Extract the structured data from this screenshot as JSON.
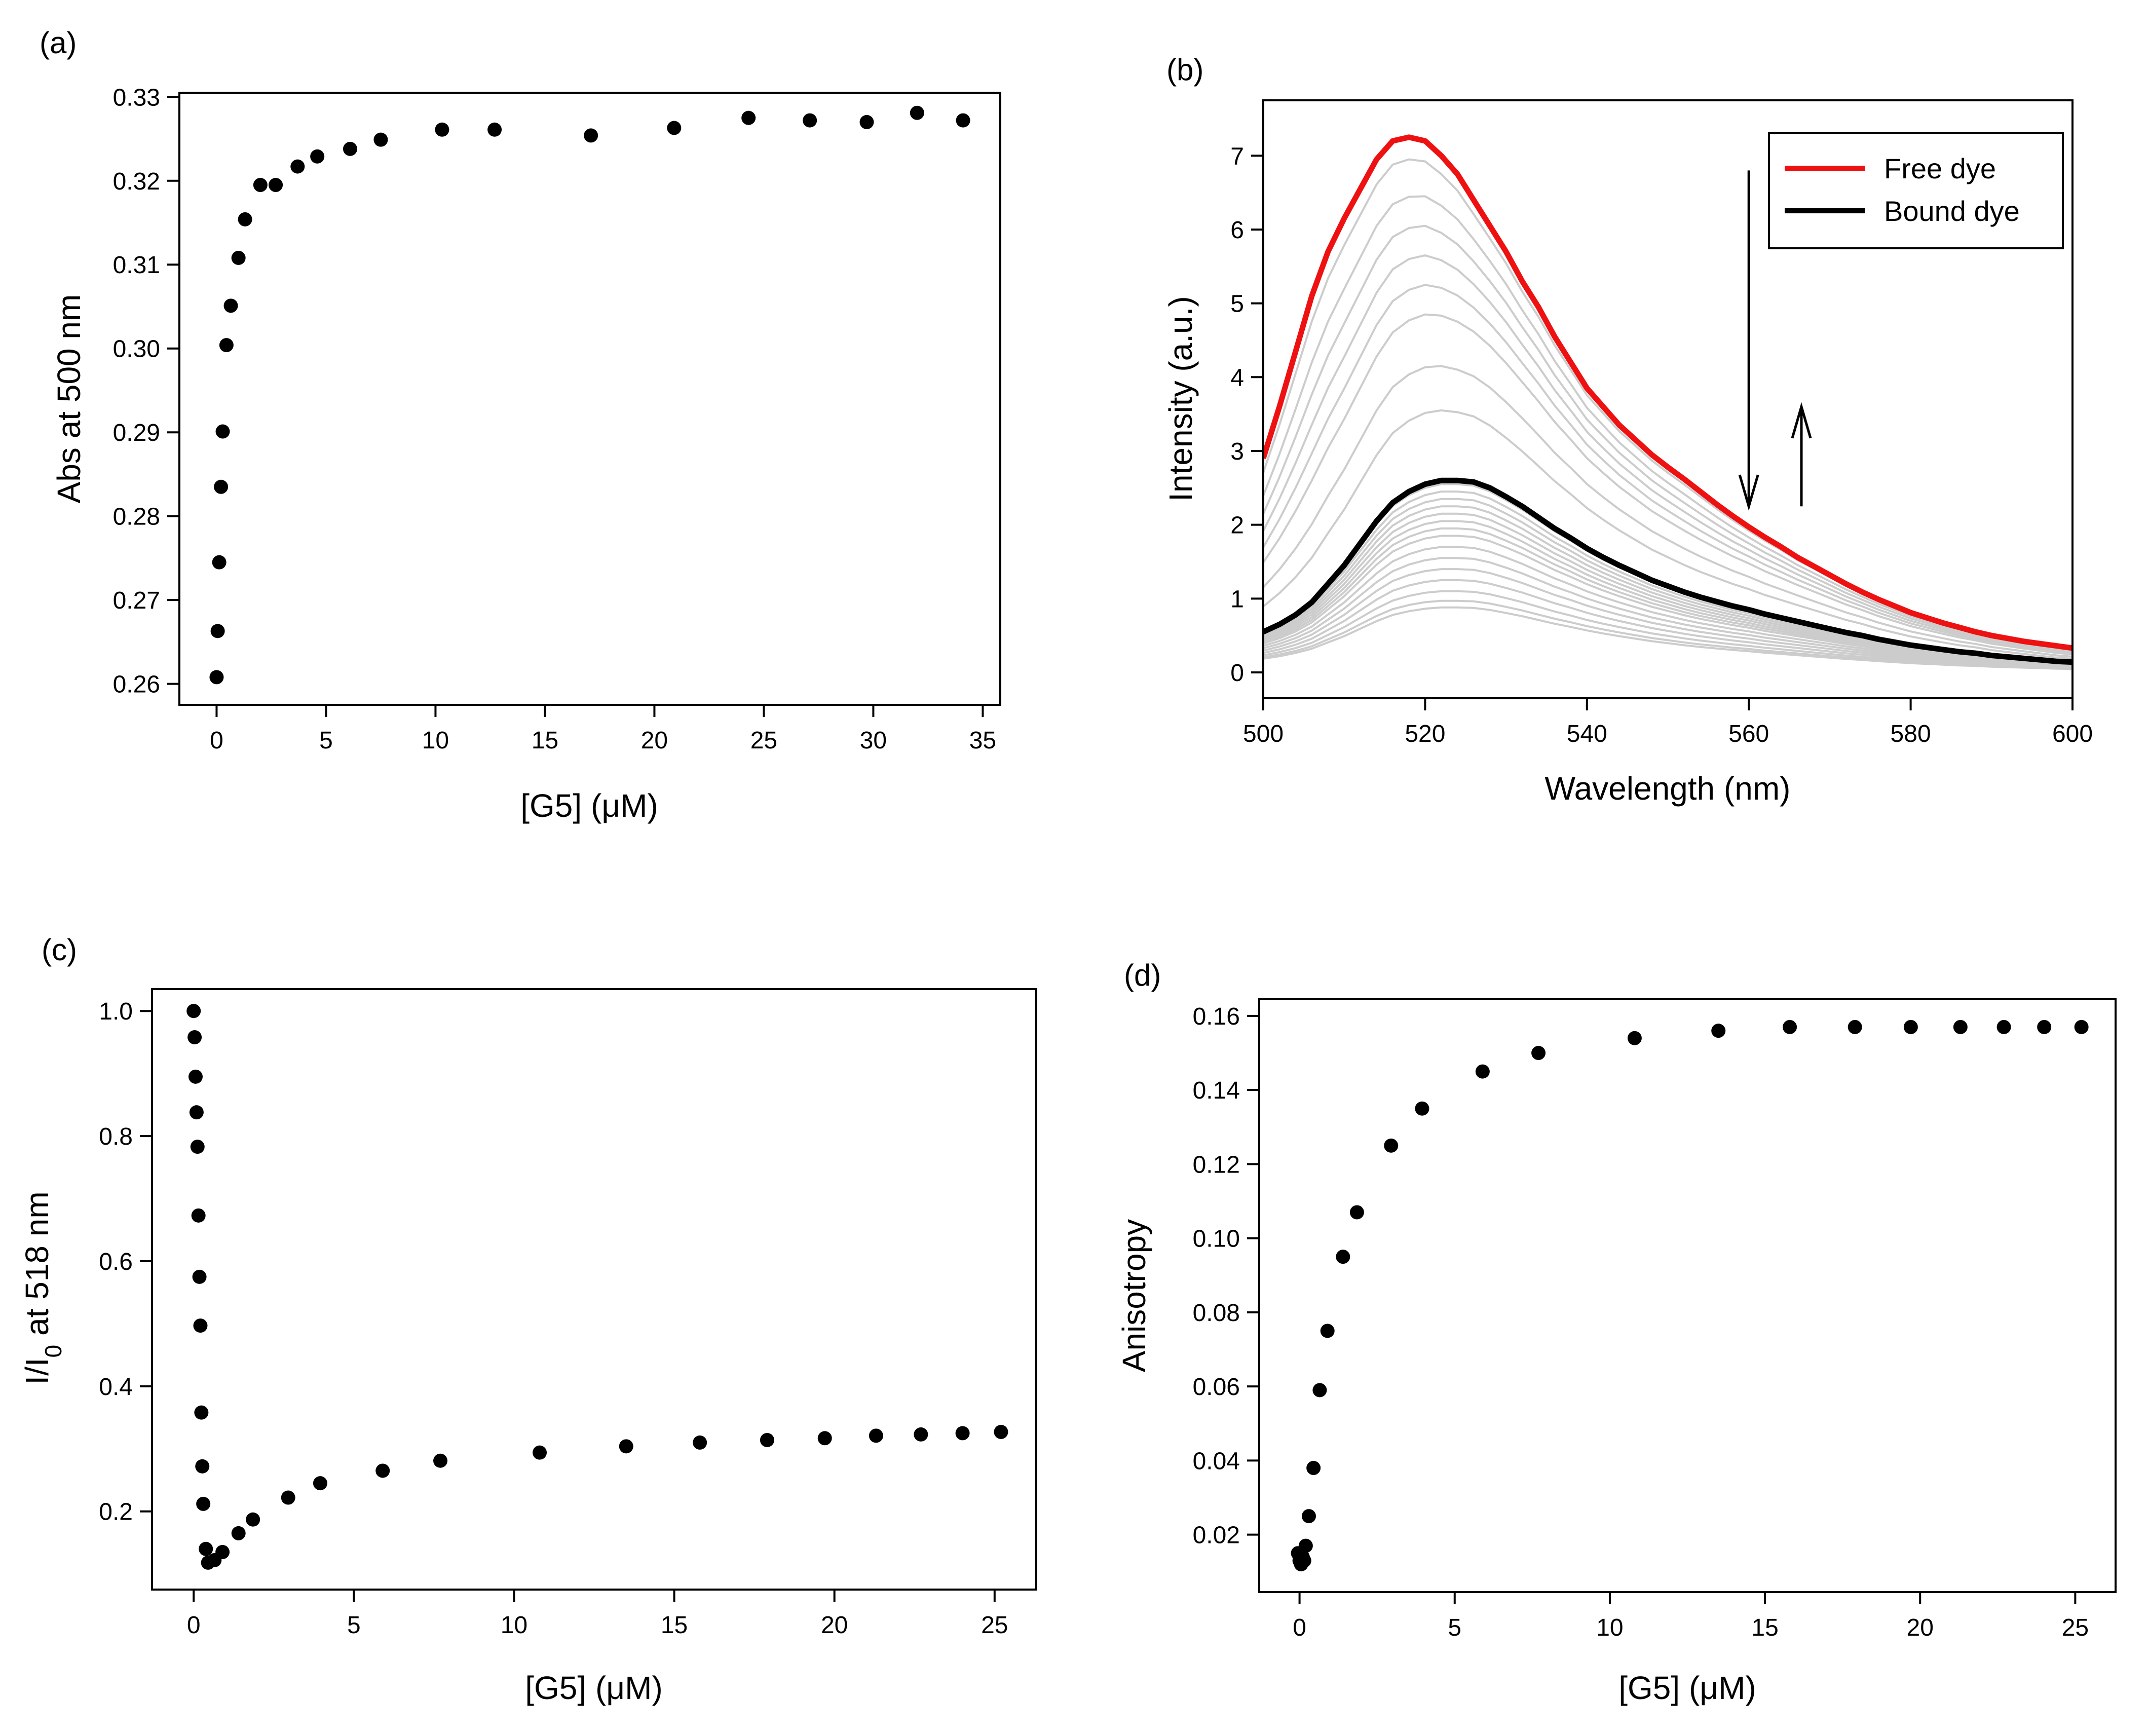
{
  "chart_data": [
    {
      "id": "a",
      "panel_label": "(a)",
      "type": "scatter",
      "xlabel": "[G5] (μM)",
      "ylabel": "Abs at 500 nm",
      "xlim": [
        -1.7,
        35.8
      ],
      "ylim": [
        0.2575,
        0.3305
      ],
      "xticks": [
        0,
        5,
        10,
        15,
        20,
        25,
        30,
        35
      ],
      "xtick_labels": [
        "0",
        "5",
        "10",
        "15",
        "20",
        "25",
        "30",
        "35"
      ],
      "yticks": [
        0.26,
        0.27,
        0.28,
        0.29,
        0.3,
        0.31,
        0.32,
        0.33
      ],
      "ytick_labels": [
        "0.26",
        "0.27",
        "0.28",
        "0.29",
        "0.30",
        "0.31",
        "0.32",
        "0.33"
      ],
      "x": [
        0.0,
        0.05,
        0.12,
        0.2,
        0.28,
        0.45,
        0.65,
        1.0,
        1.3,
        2.0,
        2.7,
        3.7,
        4.6,
        6.1,
        7.5,
        10.3,
        12.7,
        17.1,
        20.9,
        24.3,
        27.1,
        29.7,
        32.0,
        34.1
      ],
      "y": [
        0.2608,
        0.2663,
        0.2745,
        0.2835,
        0.2901,
        0.3004,
        0.3051,
        0.3108,
        0.3154,
        0.3195,
        0.3195,
        0.3217,
        0.3229,
        0.3238,
        0.3249,
        0.3261,
        0.3261,
        0.3254,
        0.3263,
        0.3275,
        0.3272,
        0.327,
        0.3281,
        0.3272
      ],
      "color": "#000000"
    },
    {
      "id": "b",
      "panel_label": "(b)",
      "type": "line",
      "xlabel": "Wavelength (nm)",
      "ylabel": "Intensity (a.u.)",
      "xlim": [
        500,
        600
      ],
      "ylim": [
        -0.35,
        7.75
      ],
      "xticks": [
        500,
        520,
        540,
        560,
        580,
        600
      ],
      "xtick_labels": [
        "500",
        "520",
        "540",
        "560",
        "580",
        "600"
      ],
      "yticks": [
        0,
        1,
        2,
        3,
        4,
        5,
        6,
        7
      ],
      "ytick_labels": [
        "0",
        "1",
        "2",
        "3",
        "4",
        "5",
        "6",
        "7"
      ],
      "legend": [
        {
          "label": "Free dye",
          "color": "#ee1111"
        },
        {
          "label": "Bound dye",
          "color": "#000000"
        }
      ],
      "legend_position": "top-right",
      "x": [
        500,
        502,
        504,
        506,
        508,
        510,
        512,
        514,
        516,
        518,
        520,
        522,
        524,
        526,
        528,
        530,
        532,
        534,
        536,
        538,
        540,
        542,
        544,
        546,
        548,
        550,
        552,
        554,
        556,
        558,
        560,
        562,
        564,
        566,
        568,
        570,
        572,
        574,
        576,
        578,
        580,
        582,
        584,
        586,
        588,
        590,
        592,
        594,
        596,
        598,
        600
      ],
      "free_dye": [
        2.9,
        3.6,
        4.35,
        5.1,
        5.7,
        6.15,
        6.55,
        6.95,
        7.2,
        7.25,
        7.2,
        7.0,
        6.75,
        6.4,
        6.05,
        5.7,
        5.3,
        4.95,
        4.55,
        4.2,
        3.85,
        3.6,
        3.35,
        3.15,
        2.95,
        2.78,
        2.62,
        2.45,
        2.28,
        2.12,
        1.97,
        1.83,
        1.7,
        1.56,
        1.44,
        1.32,
        1.2,
        1.09,
        0.99,
        0.9,
        0.81,
        0.74,
        0.67,
        0.61,
        0.55,
        0.5,
        0.46,
        0.42,
        0.39,
        0.36,
        0.33
      ],
      "bound_dye": [
        0.55,
        0.65,
        0.78,
        0.95,
        1.2,
        1.45,
        1.75,
        2.05,
        2.3,
        2.45,
        2.55,
        2.6,
        2.6,
        2.58,
        2.5,
        2.38,
        2.25,
        2.1,
        1.95,
        1.82,
        1.68,
        1.56,
        1.45,
        1.35,
        1.25,
        1.17,
        1.09,
        1.02,
        0.96,
        0.9,
        0.85,
        0.79,
        0.74,
        0.69,
        0.64,
        0.59,
        0.54,
        0.5,
        0.45,
        0.41,
        0.37,
        0.34,
        0.31,
        0.28,
        0.26,
        0.23,
        0.21,
        0.19,
        0.17,
        0.15,
        0.14
      ],
      "intermediate_color": "#cccccc",
      "intermediate_peaks": [
        6.95,
        6.45,
        6.05,
        5.65,
        5.25,
        4.85,
        4.15,
        3.55,
        2.55,
        2.45,
        2.35,
        2.25,
        2.15,
        2.05,
        1.95,
        1.85,
        1.7,
        1.55,
        1.4,
        1.25,
        1.1,
        0.97,
        0.88
      ],
      "arrows": [
        {
          "direction": "down",
          "wavelength": 560,
          "from": 6.8,
          "to": 2.25
        },
        {
          "direction": "up",
          "wavelength": 566.5,
          "from": 2.25,
          "to": 3.6
        }
      ]
    },
    {
      "id": "c",
      "panel_label": "(c)",
      "type": "scatter",
      "xlabel": "[G5] (μM)",
      "ylabel_main": "I/I",
      "ylabel_sub": "0",
      "ylabel_rest": " at 518 nm",
      "xlim": [
        -1.3,
        26.3
      ],
      "ylim": [
        0.075,
        1.035
      ],
      "xticks": [
        0,
        5,
        10,
        15,
        20,
        25
      ],
      "xtick_labels": [
        "0",
        "5",
        "10",
        "15",
        "20",
        "25"
      ],
      "yticks": [
        0.2,
        0.4,
        0.6,
        0.8,
        1.0
      ],
      "ytick_labels": [
        "0.2",
        "0.4",
        "0.6",
        "0.8",
        "1.0"
      ],
      "x": [
        0.0,
        0.03,
        0.06,
        0.09,
        0.12,
        0.15,
        0.18,
        0.21,
        0.24,
        0.27,
        0.3,
        0.38,
        0.45,
        0.65,
        0.9,
        1.4,
        1.85,
        2.95,
        3.95,
        5.9,
        7.7,
        10.8,
        13.5,
        15.8,
        17.9,
        19.7,
        21.3,
        22.7,
        24.0,
        25.2
      ],
      "y": [
        1.0,
        0.958,
        0.895,
        0.838,
        0.783,
        0.673,
        0.575,
        0.497,
        0.358,
        0.272,
        0.212,
        0.14,
        0.118,
        0.122,
        0.135,
        0.165,
        0.187,
        0.222,
        0.245,
        0.265,
        0.281,
        0.294,
        0.304,
        0.31,
        0.314,
        0.317,
        0.321,
        0.323,
        0.325,
        0.327
      ],
      "color": "#000000"
    },
    {
      "id": "d",
      "panel_label": "(d)",
      "type": "scatter",
      "xlabel": "[G5] (μM)",
      "ylabel": "Anisotropy",
      "xlim": [
        -1.3,
        26.3
      ],
      "ylim": [
        0.0045,
        0.1645
      ],
      "xticks": [
        0,
        5,
        10,
        15,
        20,
        25
      ],
      "xtick_labels": [
        "0",
        "5",
        "10",
        "15",
        "20",
        "25"
      ],
      "yticks": [
        0.02,
        0.04,
        0.06,
        0.08,
        0.1,
        0.12,
        0.14,
        0.16
      ],
      "ytick_labels": [
        "0.02",
        "0.04",
        "0.06",
        "0.08",
        "0.10",
        "0.12",
        "0.14",
        "0.16"
      ],
      "x": [
        -0.05,
        0.0,
        0.05,
        0.1,
        0.15,
        0.2,
        0.3,
        0.45,
        0.65,
        0.9,
        1.4,
        1.85,
        2.95,
        3.95,
        5.9,
        7.7,
        10.8,
        13.5,
        15.8,
        17.9,
        19.7,
        21.3,
        22.7,
        24.0,
        25.2
      ],
      "y": [
        0.015,
        0.013,
        0.012,
        0.014,
        0.013,
        0.017,
        0.025,
        0.038,
        0.059,
        0.075,
        0.095,
        0.107,
        0.125,
        0.135,
        0.145,
        0.15,
        0.154,
        0.156,
        0.157,
        0.157,
        0.157,
        0.157,
        0.157,
        0.157,
        0.157
      ],
      "color": "#000000"
    }
  ]
}
